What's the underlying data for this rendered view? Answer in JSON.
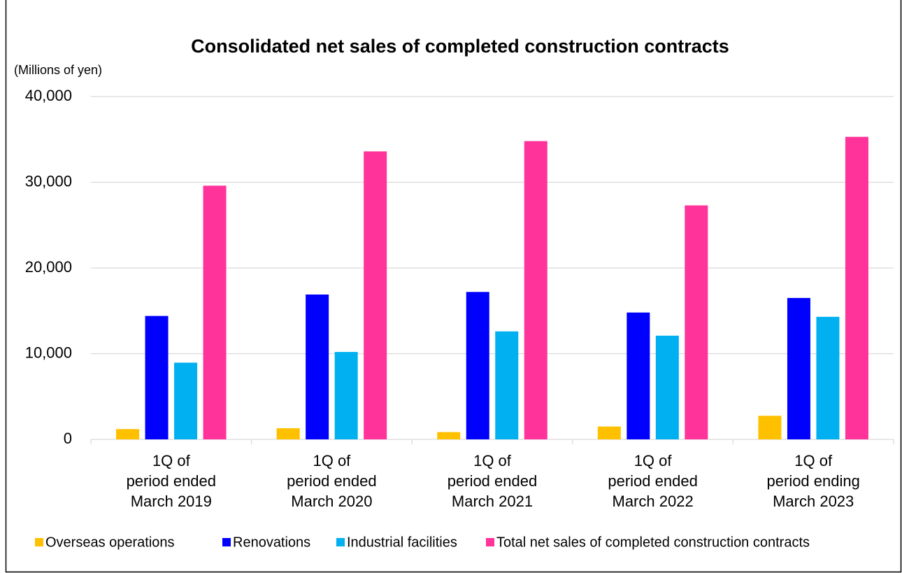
{
  "chart_data": {
    "type": "bar",
    "title": "Consolidated net sales of completed construction contracts",
    "y_label": "(Millions of yen)",
    "categories": [
      "1Q of\nperiod ended\nMarch 2019",
      "1Q of\nperiod ended\nMarch 2020",
      "1Q of\nperiod ended\nMarch 2021",
      "1Q of\nperiod ended\nMarch 2022",
      "1Q of\nperiod ending\nMarch 2023"
    ],
    "series": [
      {
        "name": "Overseas operations",
        "color": "#FFC000",
        "values": [
          1200,
          1300,
          850,
          1500,
          2750
        ]
      },
      {
        "name": "Renovations",
        "color": "#0000FF",
        "values": [
          14400,
          16900,
          17200,
          14800,
          16500
        ]
      },
      {
        "name": "Industrial facilities",
        "color": "#00B0F0",
        "values": [
          8950,
          10200,
          12600,
          12100,
          14300
        ]
      },
      {
        "name": "Total net sales of completed construction contracts",
        "color": "#FF3399",
        "values": [
          29600,
          33600,
          34800,
          27300,
          35300
        ]
      }
    ],
    "ylim": [
      0,
      40000
    ],
    "yticks": [
      0,
      {
        "value": 10000,
        "label": "10,000"
      },
      {
        "value": 20000,
        "label": "20,000"
      },
      {
        "value": 30000,
        "label": "30,000"
      },
      {
        "value": 40000,
        "label": "40,000"
      }
    ],
    "grid": true,
    "legend": "bottom"
  }
}
